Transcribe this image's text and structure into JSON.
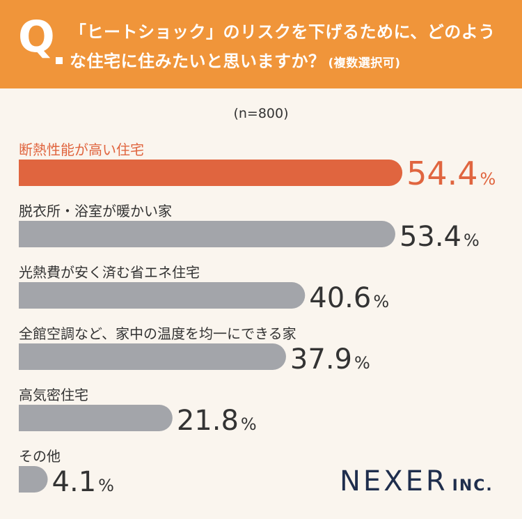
{
  "question": {
    "mark": "Q",
    "text": "「ヒートショック」のリスクを下げるために、どのような住宅に住みたいと思いますか？",
    "note": "(複数選択可)"
  },
  "sample_label": "(n=800)",
  "colors": {
    "header": "#f0953a",
    "highlight": "#e0653f",
    "bar": "#a3a5aa",
    "text": "#333333",
    "logo": "#1f2e4d"
  },
  "chart_data": {
    "type": "bar",
    "orientation": "horizontal",
    "categories": [
      "断熱性能が高い住宅",
      "脱衣所・浴室が暖かい家",
      "光熱費が安く済む省エネ住宅",
      "全館空調など、家中の温度を均一にできる家",
      "高気密住宅",
      "その他"
    ],
    "values": [
      54.4,
      53.4,
      40.6,
      37.9,
      21.8,
      4.1
    ],
    "unit": "%",
    "highlight_index": 0,
    "xlim": [
      0,
      100
    ]
  },
  "logo": {
    "main": "NEXER",
    "sub": "INC."
  }
}
